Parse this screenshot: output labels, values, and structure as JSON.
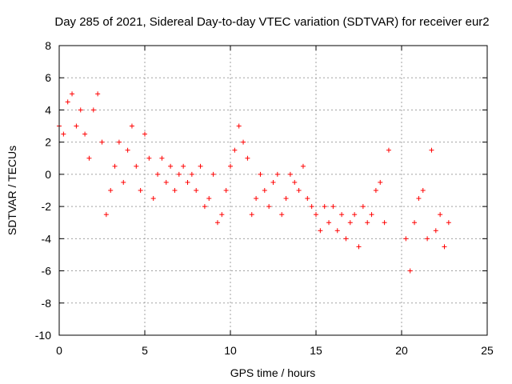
{
  "chart_data": {
    "type": "scatter",
    "title": "Day 285 of 2021, Sidereal Day-to-day VTEC variation (SDTVAR) for receiver eur2",
    "xlabel": "GPS time / hours",
    "ylabel": "SDTVAR / TECUs",
    "xlim": [
      0,
      25
    ],
    "ylim": [
      -10,
      8
    ],
    "xticks": [
      0,
      5,
      10,
      15,
      20,
      25
    ],
    "yticks": [
      -10,
      -8,
      -6,
      -4,
      -2,
      0,
      2,
      4,
      6,
      8
    ],
    "grid": true,
    "marker": "+",
    "color": "#ff0000",
    "series": [
      {
        "name": "SDTVAR eur2",
        "x": [
          0.0,
          0.25,
          0.5,
          0.75,
          1.0,
          1.25,
          1.5,
          1.75,
          2.0,
          2.25,
          2.5,
          2.75,
          3.0,
          3.25,
          3.5,
          3.75,
          4.0,
          4.25,
          4.5,
          4.75,
          5.0,
          5.25,
          5.5,
          5.75,
          6.0,
          6.25,
          6.5,
          6.75,
          7.0,
          7.25,
          7.5,
          7.75,
          8.0,
          8.25,
          8.5,
          8.75,
          9.0,
          9.25,
          9.5,
          9.75,
          10.0,
          10.25,
          10.5,
          10.75,
          11.0,
          11.25,
          11.5,
          11.75,
          12.0,
          12.25,
          12.5,
          12.75,
          13.0,
          13.25,
          13.5,
          13.75,
          14.0,
          14.25,
          14.5,
          14.75,
          15.0,
          15.25,
          15.5,
          15.75,
          16.0,
          16.25,
          16.5,
          16.75,
          17.0,
          17.25,
          17.5,
          17.75,
          18.0,
          18.25,
          18.5,
          18.75,
          19.0,
          19.25,
          20.25,
          20.5,
          20.75,
          21.0,
          21.25,
          21.5,
          21.75,
          22.0,
          22.25,
          22.5,
          22.75
        ],
        "y": [
          3.0,
          2.5,
          4.5,
          5.0,
          3.0,
          4.0,
          2.5,
          1.0,
          4.0,
          5.0,
          2.0,
          -2.5,
          -1.0,
          0.5,
          2.0,
          -0.5,
          1.5,
          3.0,
          0.5,
          -1.0,
          2.5,
          1.0,
          -1.5,
          0.0,
          1.0,
          -0.5,
          0.5,
          -1.0,
          0.0,
          0.5,
          -0.5,
          0.0,
          -1.0,
          0.5,
          -2.0,
          -1.5,
          0.0,
          -3.0,
          -2.5,
          -1.0,
          0.5,
          1.5,
          3.0,
          2.0,
          1.0,
          -2.5,
          -1.5,
          0.0,
          -1.0,
          -2.0,
          -0.5,
          0.0,
          -2.5,
          -1.5,
          0.0,
          -0.5,
          -1.0,
          0.5,
          -1.5,
          -2.0,
          -2.5,
          -3.5,
          -2.0,
          -3.0,
          -2.0,
          -3.5,
          -2.5,
          -4.0,
          -3.0,
          -2.5,
          -4.5,
          -2.0,
          -3.0,
          -2.5,
          -1.0,
          -0.5,
          -3.0,
          1.5,
          -4.0,
          -6.0,
          -3.0,
          -1.5,
          -1.0,
          -4.0,
          1.5,
          -3.5,
          -2.5,
          -4.5,
          -3.0
        ]
      }
    ]
  }
}
